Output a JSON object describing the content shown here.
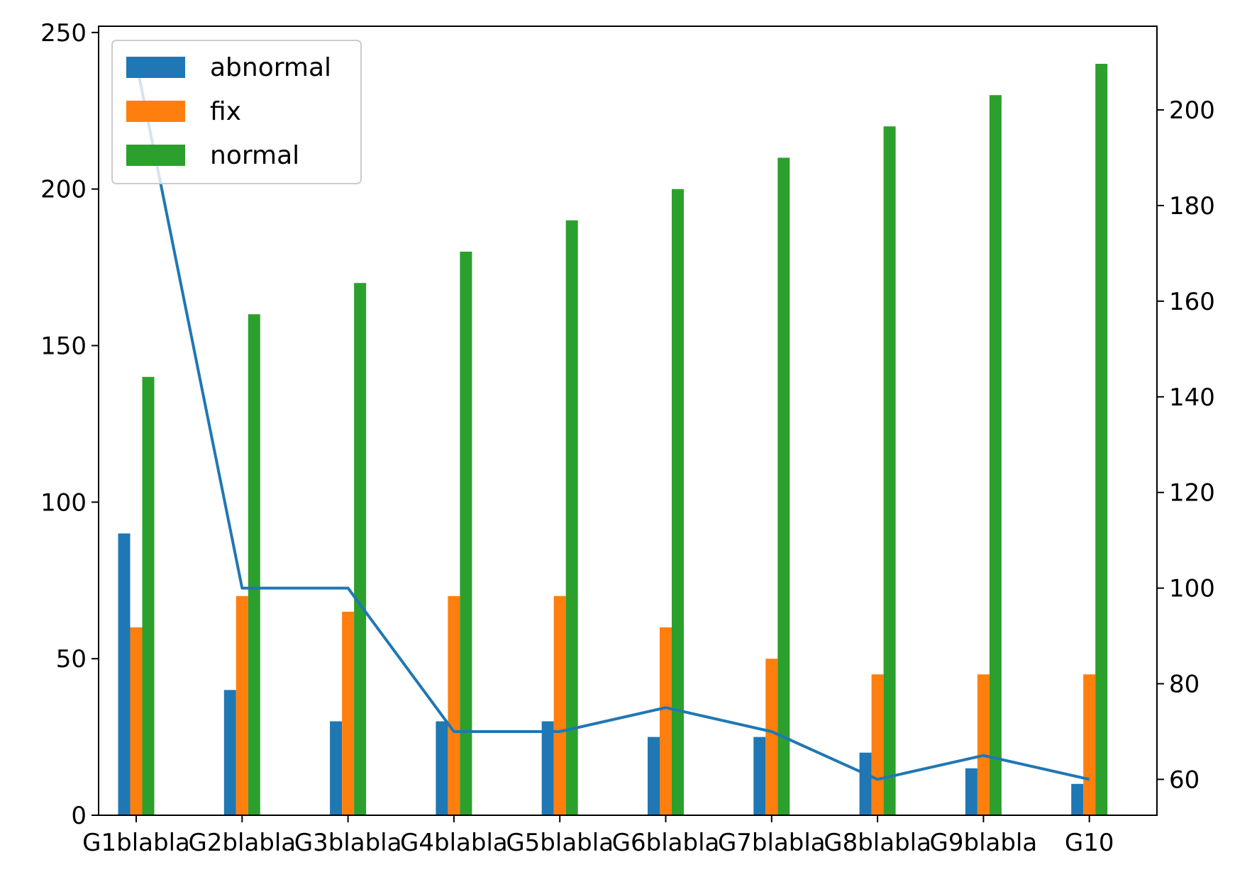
{
  "chart_data": {
    "type": "bar",
    "categories": [
      "G1blabla",
      "G2blabla",
      "G3blabla",
      "G4blabla",
      "G5blabla",
      "G6blabla",
      "G7blabla",
      "G8blabla",
      "G9blabla",
      "G10"
    ],
    "series": [
      {
        "name": "abnormal",
        "type": "bar",
        "axis": "left",
        "color": "#1f77b4",
        "values": [
          90,
          40,
          30,
          30,
          30,
          25,
          25,
          20,
          15,
          10
        ]
      },
      {
        "name": "fix",
        "type": "bar",
        "axis": "left",
        "color": "#ff7f0e",
        "values": [
          60,
          70,
          65,
          70,
          70,
          60,
          50,
          45,
          45,
          45
        ]
      },
      {
        "name": "normal",
        "type": "bar",
        "axis": "left",
        "color": "#2ca02c",
        "values": [
          140,
          160,
          170,
          180,
          190,
          200,
          210,
          220,
          230,
          240
        ]
      },
      {
        "type": "line",
        "axis": "right",
        "color": "#1f77b4",
        "values": [
          210,
          100,
          100,
          70,
          70,
          75,
          70,
          60,
          65,
          60
        ]
      }
    ],
    "left_axis": {
      "ylim": [
        0,
        252
      ],
      "ticks": [
        0,
        50,
        100,
        150,
        200,
        250
      ]
    },
    "right_axis": {
      "ylim": [
        52.5,
        217.5
      ],
      "ticks": [
        60,
        80,
        100,
        120,
        140,
        160,
        180,
        200
      ]
    },
    "legend": {
      "placement": "top-left",
      "entries": [
        "abnormal",
        "fix",
        "normal"
      ]
    },
    "grid": false,
    "title": "",
    "xlabel": "",
    "ylabel": ""
  }
}
